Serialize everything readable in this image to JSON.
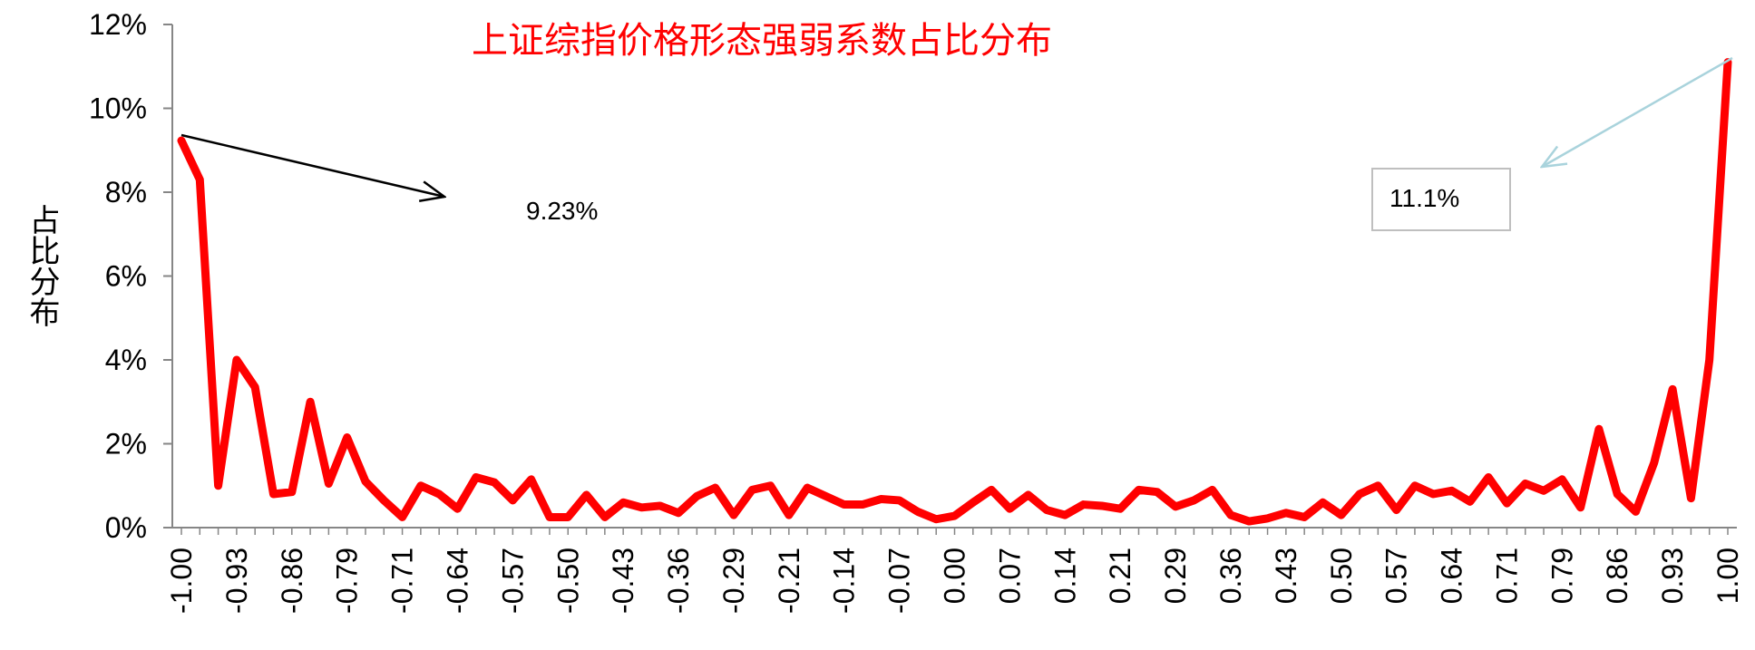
{
  "chart_data": {
    "type": "line",
    "title": "上证综指价格形态强弱系数占比分布",
    "ylabel": "占比分布",
    "xlabel": "",
    "ylim": [
      0,
      12
    ],
    "y_ticks": [
      "0%",
      "2%",
      "4%",
      "6%",
      "8%",
      "10%",
      "12%"
    ],
    "x_tick_labels": [
      "-1.00",
      "-0.93",
      "-0.86",
      "-0.79",
      "-0.71",
      "-0.64",
      "-0.57",
      "-0.50",
      "-0.43",
      "-0.36",
      "-0.29",
      "-0.21",
      "-0.14",
      "-0.07",
      "0.00",
      "0.07",
      "0.14",
      "0.21",
      "0.29",
      "0.36",
      "0.43",
      "0.50",
      "0.57",
      "0.64",
      "0.71",
      "0.79",
      "0.86",
      "0.93",
      "1.00"
    ],
    "series": [
      {
        "color": "#ff0000",
        "values": [
          9.23,
          8.3,
          1.0,
          4.0,
          3.35,
          0.8,
          0.85,
          3.0,
          1.05,
          2.15,
          1.1,
          0.65,
          0.25,
          1.0,
          0.8,
          0.45,
          1.2,
          1.08,
          0.65,
          1.15,
          0.25,
          0.25,
          0.78,
          0.25,
          0.6,
          0.48,
          0.52,
          0.35,
          0.75,
          0.95,
          0.3,
          0.9,
          1.0,
          0.3,
          0.95,
          0.75,
          0.55,
          0.55,
          0.68,
          0.65,
          0.38,
          0.2,
          0.28,
          0.6,
          0.9,
          0.45,
          0.78,
          0.42,
          0.3,
          0.55,
          0.52,
          0.45,
          0.9,
          0.85,
          0.5,
          0.65,
          0.9,
          0.3,
          0.15,
          0.22,
          0.35,
          0.25,
          0.6,
          0.3,
          0.8,
          1.0,
          0.42,
          1.0,
          0.8,
          0.88,
          0.62,
          1.2,
          0.58,
          1.05,
          0.88,
          1.15,
          0.48,
          2.35,
          0.8,
          0.38,
          1.55,
          3.3,
          0.7,
          4.0,
          11.1
        ]
      }
    ],
    "annotations": [
      {
        "text": "9.23%"
      },
      {
        "text": "11.1%"
      }
    ],
    "grid": false
  }
}
